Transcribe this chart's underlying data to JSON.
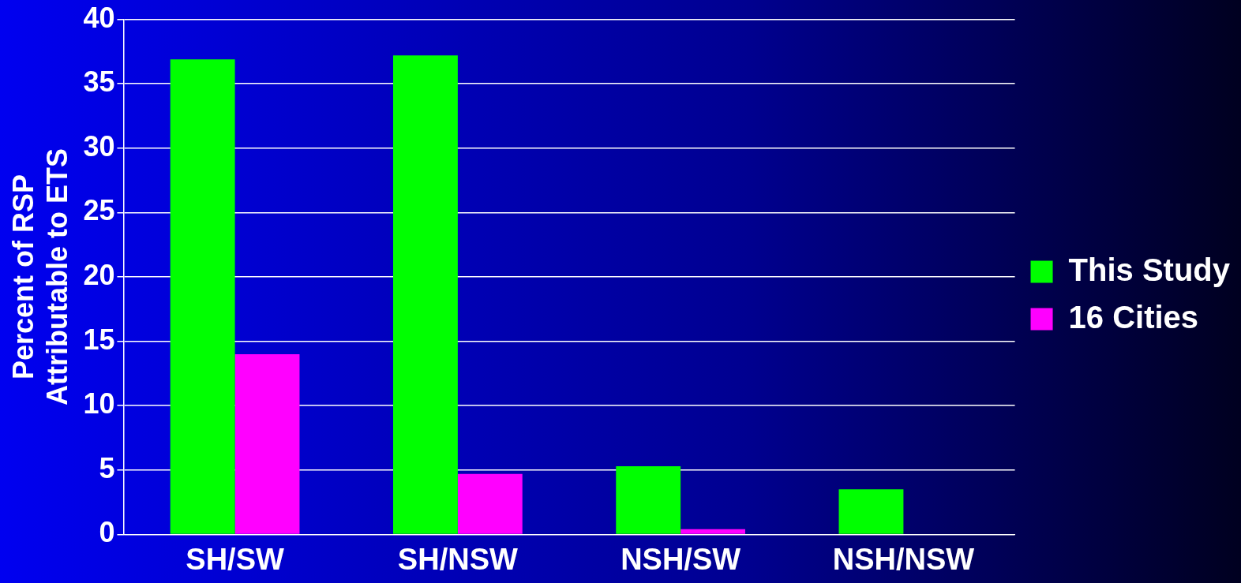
{
  "chart_data": {
    "type": "bar",
    "ylabel": "Percent of RSP\nAttributable to ETS",
    "categories": [
      "SH/SW",
      "SH/NSW",
      "NSH/SW",
      "NSH/NSW"
    ],
    "series": [
      {
        "name": "This Study",
        "color": "#00ff00",
        "values": [
          36.9,
          37.2,
          5.3,
          3.5
        ]
      },
      {
        "name": "16 Cities",
        "color": "#ff00ff",
        "values": [
          14.0,
          4.7,
          0.4,
          0
        ]
      }
    ],
    "ylim": [
      0,
      40
    ],
    "yticks": [
      0,
      5,
      10,
      15,
      20,
      25,
      30,
      35,
      40
    ],
    "grid": "y",
    "legend": "right"
  }
}
